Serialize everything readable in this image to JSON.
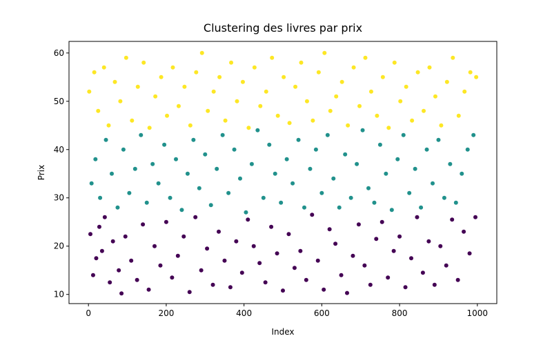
{
  "chart_data": {
    "type": "scatter",
    "title": "Clustering des livres par prix",
    "x_label": "Index",
    "y_label": "Prix",
    "xlim": [
      -50,
      1050
    ],
    "ylim": [
      8.1,
      62.4
    ],
    "xticks": [
      0,
      200,
      400,
      600,
      800,
      1000
    ],
    "yticks": [
      10,
      20,
      30,
      40,
      50,
      60
    ],
    "series": [
      {
        "color": "#440154",
        "x": [
          5,
          12,
          20,
          28,
          35,
          42,
          55,
          63,
          78,
          85,
          95,
          110,
          125,
          140,
          155,
          170,
          185,
          200,
          215,
          230,
          245,
          260,
          275,
          290,
          305,
          320,
          335,
          350,
          365,
          380,
          395,
          410,
          425,
          440,
          455,
          470,
          485,
          500,
          515,
          530,
          545,
          560,
          575,
          590,
          605,
          620,
          635,
          650,
          665,
          680,
          695,
          710,
          725,
          740,
          755,
          770,
          785,
          800,
          815,
          830,
          845,
          860,
          875,
          890,
          905,
          920,
          935,
          950,
          965,
          980,
          995
        ],
        "values": [
          22.5,
          14,
          17.5,
          24,
          19,
          26,
          12.5,
          21,
          15,
          10.2,
          22,
          17,
          13,
          24.5,
          11,
          20,
          16,
          25,
          13.5,
          18,
          22,
          10.5,
          26,
          15,
          19.5,
          12,
          23,
          17,
          11.5,
          21,
          14.5,
          25.5,
          20,
          16.5,
          12.5,
          24,
          18.5,
          10.8,
          22.5,
          15.5,
          19,
          13,
          26.5,
          17,
          11,
          23.5,
          20.5,
          14,
          10.3,
          18,
          24.5,
          16,
          12,
          21.5,
          25,
          13.5,
          19,
          22,
          11.5,
          17.5,
          26,
          14.5,
          21,
          12,
          20,
          16,
          25.5,
          13,
          23,
          18.5,
          26
        ]
      },
      {
        "color": "#21918c",
        "x": [
          8,
          18,
          30,
          45,
          60,
          75,
          90,
          105,
          120,
          135,
          150,
          165,
          180,
          195,
          210,
          225,
          240,
          255,
          270,
          285,
          300,
          315,
          330,
          345,
          360,
          375,
          390,
          405,
          420,
          435,
          450,
          465,
          480,
          495,
          510,
          525,
          540,
          555,
          570,
          585,
          600,
          615,
          630,
          645,
          660,
          675,
          690,
          705,
          720,
          735,
          750,
          765,
          780,
          795,
          810,
          825,
          840,
          855,
          870,
          885,
          900,
          915,
          930,
          945,
          960,
          975,
          990
        ],
        "values": [
          33,
          38,
          30,
          42,
          35,
          28,
          40,
          31,
          36,
          43,
          29,
          37,
          33,
          41,
          30,
          38,
          27.5,
          35,
          42,
          32,
          39,
          28.5,
          36,
          43,
          31,
          40,
          34,
          27,
          37,
          44,
          30,
          41,
          35,
          29,
          38,
          33,
          42,
          28,
          36,
          40,
          31,
          43,
          34,
          28,
          39,
          30,
          37,
          44,
          32,
          29,
          41,
          35,
          27.5,
          38,
          43,
          31,
          36,
          28,
          40,
          33,
          42,
          30,
          37,
          29,
          35,
          40,
          43
        ]
      },
      {
        "color": "#fde725",
        "x": [
          2,
          15,
          25,
          40,
          52,
          68,
          82,
          97,
          112,
          127,
          142,
          157,
          172,
          187,
          202,
          217,
          232,
          247,
          262,
          277,
          292,
          307,
          322,
          337,
          352,
          367,
          382,
          397,
          412,
          427,
          442,
          457,
          472,
          487,
          502,
          517,
          532,
          547,
          562,
          577,
          592,
          607,
          622,
          637,
          652,
          667,
          682,
          697,
          712,
          727,
          742,
          757,
          772,
          787,
          802,
          817,
          832,
          847,
          862,
          877,
          892,
          907,
          922,
          937,
          952,
          967,
          982,
          997
        ],
        "values": [
          52,
          56,
          48,
          57,
          45,
          54,
          50,
          59,
          46,
          53,
          58,
          44.5,
          51,
          55,
          47,
          57,
          49,
          53,
          45,
          56,
          60,
          48,
          52,
          55,
          46,
          58,
          50,
          54,
          44.5,
          57,
          49,
          52,
          59,
          47,
          55,
          45.5,
          53,
          58,
          50,
          46,
          56,
          60,
          48,
          51,
          54,
          45,
          57,
          49,
          59,
          52,
          47,
          55,
          44.5,
          58,
          50,
          53,
          46,
          56,
          48,
          57,
          51,
          45,
          54,
          59,
          47,
          52,
          56,
          55
        ]
      }
    ]
  }
}
